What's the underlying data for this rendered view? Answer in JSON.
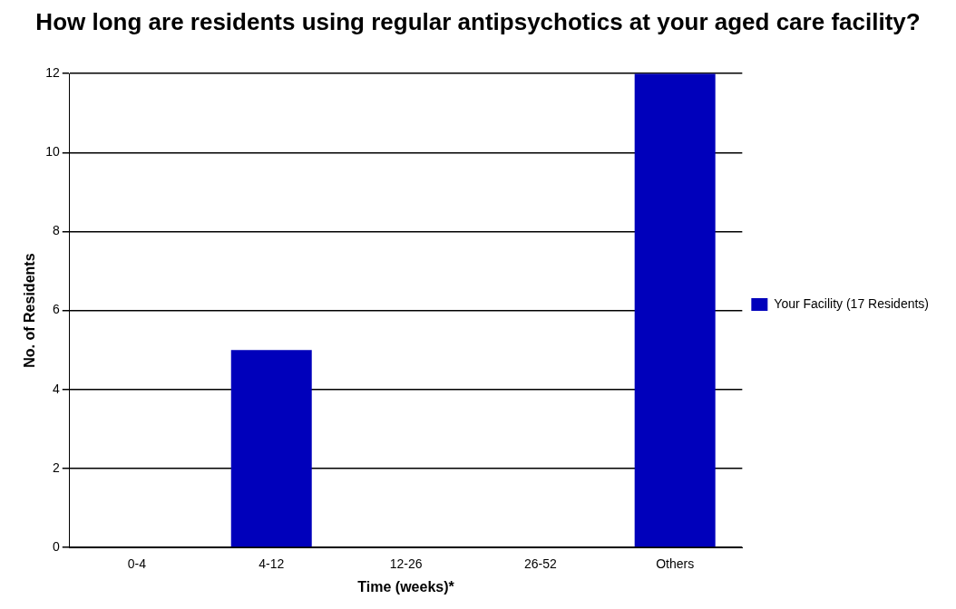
{
  "chart_data": {
    "type": "bar",
    "title": "How long are residents using regular antipsychotics at your aged care facility?",
    "xlabel": "Time (weeks)*",
    "ylabel": "No. of Residents",
    "categories": [
      "0-4",
      "4-12",
      "12-26",
      "26-52",
      "Others"
    ],
    "series": [
      {
        "name": "Your Facility (17 Residents)",
        "color": "#0000bb",
        "values": [
          0,
          5,
          0,
          0,
          12
        ]
      }
    ],
    "ylim": [
      0,
      12
    ],
    "yticks": [
      0,
      2,
      4,
      6,
      8,
      10,
      12
    ],
    "grid": "y",
    "legend": "right"
  }
}
